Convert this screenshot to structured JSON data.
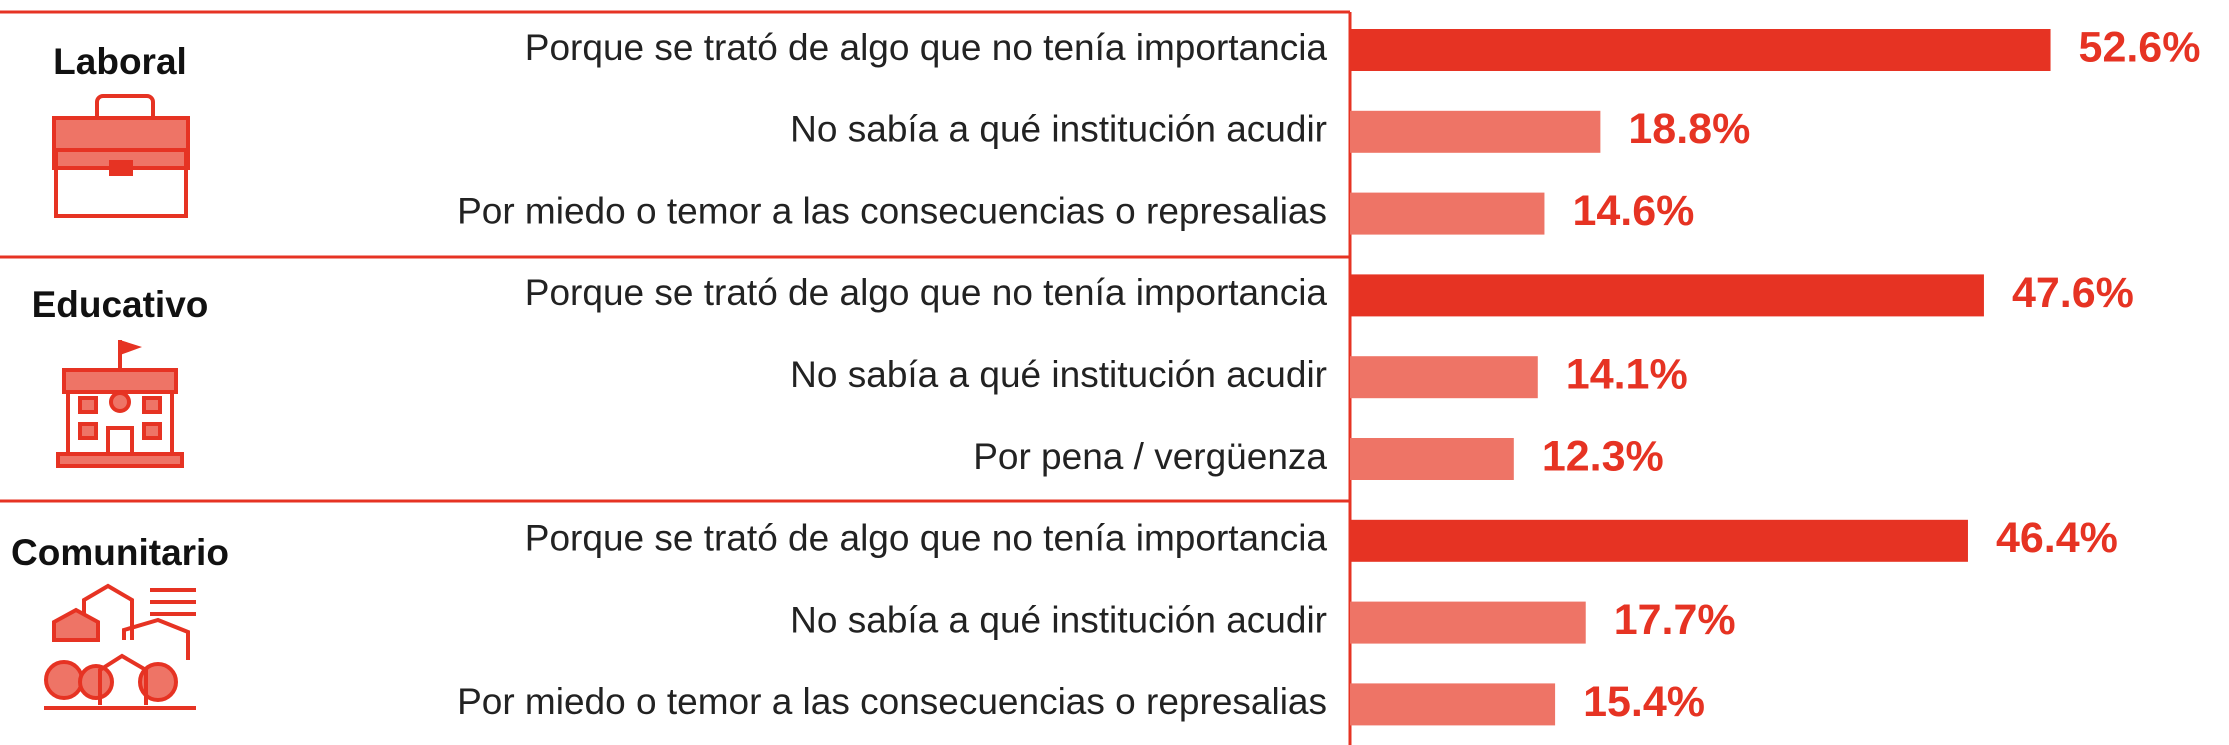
{
  "chart_data": {
    "type": "bar",
    "groups": [
      {
        "name": "Laboral",
        "categories": [
          "Porque se trató de algo que no tenía importancia",
          "No sabía a qué institución acudir",
          "Por miedo o temor a las consecuencias o represalias"
        ],
        "values": [
          52.6,
          18.8,
          14.6
        ],
        "value_labels": [
          "52.6%",
          "18.8%",
          "14.6%"
        ]
      },
      {
        "name": "Educativo",
        "categories": [
          "Porque se trató de algo que no tenía importancia",
          "No sabía a qué institución acudir",
          "Por pena / vergüenza"
        ],
        "values": [
          47.6,
          14.1,
          12.3
        ],
        "value_labels": [
          "47.6%",
          "14.1%",
          "12.3%"
        ]
      },
      {
        "name": "Comunitario",
        "categories": [
          "Porque se trató de algo que no tenía importancia",
          "No sabía a qué institución acudir",
          "Por miedo o temor a las consecuencias o represalias"
        ],
        "values": [
          46.4,
          17.7,
          15.4
        ],
        "value_labels": [
          "46.4%",
          "17.7%",
          "15.4%"
        ]
      }
    ],
    "highlight_color": "#e63323",
    "color": "#ee7466",
    "label_color": "#e63323",
    "xlim": [
      0,
      66
    ]
  }
}
